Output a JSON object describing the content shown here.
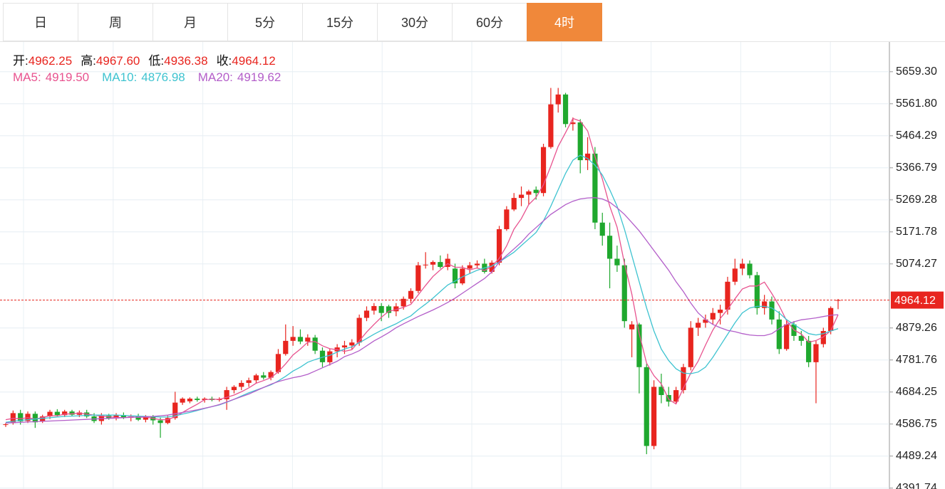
{
  "tabs": [
    "日",
    "周",
    "月",
    "5分",
    "15分",
    "30分",
    "60分",
    "4时"
  ],
  "active_tab": "4时",
  "chart_data": {
    "type": "candlestick",
    "info": [
      {
        "label": "开:",
        "value": "4962.25"
      },
      {
        "label": "高:",
        "value": "4967.60"
      },
      {
        "label": "低:",
        "value": "4936.38"
      },
      {
        "label": "收:",
        "value": "4964.12"
      }
    ],
    "up_color": "#e8251f",
    "down_color": "#1fa82e",
    "ylim": [
      4389,
      5752
    ],
    "yticks": [
      {
        "value": 5659.3,
        "label": "5659.30"
      },
      {
        "value": 5561.8,
        "label": "5561.80"
      },
      5464.29,
      5366.79,
      5269.28,
      5171.78,
      5074.27,
      4879.26,
      4781.76,
      4684.25,
      4586.75,
      4489.24,
      4391.74
    ],
    "grid": true,
    "current_price": {
      "value": 4964.12,
      "label": "4964.12"
    },
    "ohlc": [
      [
        4584,
        4590,
        4578,
        4586
      ],
      [
        4590,
        4628,
        4585,
        4620
      ],
      [
        4620,
        4630,
        4585,
        4595
      ],
      [
        4596,
        4625,
        4590,
        4618
      ],
      [
        4618,
        4625,
        4575,
        4592
      ],
      [
        4595,
        4615,
        4590,
        4610
      ],
      [
        4610,
        4630,
        4602,
        4624
      ],
      [
        4624,
        4632,
        4610,
        4614
      ],
      [
        4614,
        4630,
        4608,
        4625
      ],
      [
        4625,
        4630,
        4612,
        4615
      ],
      [
        4615,
        4628,
        4608,
        4622
      ],
      [
        4622,
        4630,
        4605,
        4610
      ],
      [
        4610,
        4620,
        4590,
        4596
      ],
      [
        4596,
        4620,
        4585,
        4612
      ],
      [
        4612,
        4618,
        4600,
        4604
      ],
      [
        4604,
        4620,
        4598,
        4614
      ],
      [
        4614,
        4622,
        4602,
        4606
      ],
      [
        4606,
        4616,
        4595,
        4610
      ],
      [
        4610,
        4618,
        4596,
        4600
      ],
      [
        4600,
        4614,
        4592,
        4608
      ],
      [
        4608,
        4614,
        4585,
        4598
      ],
      [
        4598,
        4606,
        4545,
        4590
      ],
      [
        4590,
        4612,
        4586,
        4605
      ],
      [
        4605,
        4685,
        4600,
        4652
      ],
      [
        4652,
        4668,
        4645,
        4664
      ],
      [
        4656,
        4668,
        4650,
        4664
      ],
      [
        4664,
        4670,
        4655,
        4660
      ],
      [
        4660,
        4668,
        4652,
        4664
      ],
      [
        4664,
        4670,
        4656,
        4660
      ],
      [
        4660,
        4668,
        4655,
        4662
      ],
      [
        4662,
        4700,
        4630,
        4690
      ],
      [
        4690,
        4705,
        4680,
        4700
      ],
      [
        4700,
        4720,
        4690,
        4712
      ],
      [
        4712,
        4728,
        4700,
        4720
      ],
      [
        4720,
        4740,
        4710,
        4735
      ],
      [
        4735,
        4745,
        4722,
        4728
      ],
      [
        4728,
        4750,
        4720,
        4745
      ],
      [
        4745,
        4815,
        4740,
        4800
      ],
      [
        4800,
        4890,
        4795,
        4840
      ],
      [
        4840,
        4885,
        4825,
        4852
      ],
      [
        4852,
        4875,
        4830,
        4838
      ],
      [
        4838,
        4860,
        4825,
        4850
      ],
      [
        4850,
        4858,
        4800,
        4810
      ],
      [
        4810,
        4820,
        4760,
        4775
      ],
      [
        4775,
        4815,
        4765,
        4808
      ],
      [
        4808,
        4830,
        4790,
        4820
      ],
      [
        4820,
        4840,
        4800,
        4826
      ],
      [
        4826,
        4845,
        4815,
        4835
      ],
      [
        4835,
        4920,
        4825,
        4910
      ],
      [
        4910,
        4945,
        4900,
        4932
      ],
      [
        4932,
        4955,
        4920,
        4946
      ],
      [
        4946,
        4955,
        4900,
        4925
      ],
      [
        4945,
        4950,
        4910,
        4925
      ],
      [
        4930,
        4955,
        4915,
        4945
      ],
      [
        4945,
        4975,
        4935,
        4968
      ],
      [
        4968,
        5000,
        4955,
        4992
      ],
      [
        4992,
        5080,
        4985,
        5070
      ],
      [
        5070,
        5110,
        5060,
        5072
      ],
      [
        5072,
        5085,
        5055,
        5080
      ],
      [
        5080,
        5100,
        5060,
        5065
      ],
      [
        5065,
        5105,
        5055,
        5090
      ],
      [
        5060,
        5075,
        5000,
        5015
      ],
      [
        5015,
        5070,
        5010,
        5060
      ],
      [
        5060,
        5080,
        5045,
        5070
      ],
      [
        5070,
        5085,
        5060,
        5075
      ],
      [
        5075,
        5090,
        5045,
        5050
      ],
      [
        5050,
        5085,
        5045,
        5078
      ],
      [
        5078,
        5190,
        5070,
        5180
      ],
      [
        5180,
        5250,
        5175,
        5240
      ],
      [
        5240,
        5290,
        5235,
        5275
      ],
      [
        5275,
        5310,
        5250,
        5285
      ],
      [
        5285,
        5300,
        5255,
        5295
      ],
      [
        5300,
        5310,
        5270,
        5290
      ],
      [
        5290,
        5440,
        5280,
        5430
      ],
      [
        5430,
        5610,
        5425,
        5560
      ],
      [
        5560,
        5610,
        5535,
        5590
      ],
      [
        5590,
        5595,
        5490,
        5500
      ],
      [
        5500,
        5520,
        5480,
        5505
      ],
      [
        5505,
        5515,
        5350,
        5390
      ],
      [
        5390,
        5460,
        5360,
        5410
      ],
      [
        5410,
        5430,
        5180,
        5200
      ],
      [
        5200,
        5230,
        5130,
        5160
      ],
      [
        5160,
        5200,
        5000,
        5090
      ],
      [
        5090,
        5130,
        5050,
        5070
      ],
      [
        5070,
        5090,
        4880,
        4900
      ],
      [
        4875,
        4900,
        4790,
        4890
      ],
      [
        4890,
        4895,
        4680,
        4760
      ],
      [
        4760,
        4770,
        4495,
        4520
      ],
      [
        4520,
        4720,
        4510,
        4700
      ],
      [
        4700,
        4740,
        4650,
        4675
      ],
      [
        4675,
        4700,
        4640,
        4655
      ],
      [
        4655,
        4700,
        4650,
        4690
      ],
      [
        4690,
        4770,
        4680,
        4760
      ],
      [
        4760,
        4900,
        4750,
        4880
      ],
      [
        4880,
        4910,
        4855,
        4895
      ],
      [
        4895,
        4920,
        4880,
        4905
      ],
      [
        4905,
        4940,
        4890,
        4925
      ],
      [
        4925,
        4950,
        4890,
        4935
      ],
      [
        4935,
        5035,
        4920,
        5020
      ],
      [
        5020,
        5090,
        5010,
        5060
      ],
      [
        5060,
        5090,
        5040,
        5075
      ],
      [
        5075,
        5085,
        5030,
        5040
      ],
      [
        5040,
        5050,
        4920,
        4940
      ],
      [
        4940,
        4980,
        4920,
        4960
      ],
      [
        4960,
        4975,
        4890,
        4905
      ],
      [
        4905,
        4930,
        4800,
        4815
      ],
      [
        4815,
        4905,
        4810,
        4890
      ],
      [
        4890,
        4900,
        4840,
        4855
      ],
      [
        4855,
        4870,
        4825,
        4840
      ],
      [
        4840,
        4855,
        4760,
        4775
      ],
      [
        4775,
        4840,
        4650,
        4830
      ],
      [
        4830,
        4880,
        4820,
        4870
      ],
      [
        4870,
        4945,
        4860,
        4940
      ],
      [
        4962.25,
        4967.6,
        4936.38,
        4964.12
      ]
    ],
    "series": [
      {
        "name": "MA5:",
        "label": "4919.50",
        "color": "#e8538f",
        "values": [
          4600,
          4604,
          4603,
          4606,
          4602,
          4607,
          4612,
          4612,
          4617,
          4618,
          4620,
          4617,
          4614,
          4611,
          4609,
          4607,
          4606,
          4609,
          4607,
          4608,
          4604,
          4600,
          4600,
          4609,
          4622,
          4635,
          4647,
          4661,
          4662,
          4662,
          4668,
          4675,
          4685,
          4697,
          4711,
          4719,
          4728,
          4746,
          4770,
          4797,
          4815,
          4836,
          4838,
          4825,
          4816,
          4813,
          4808,
          4813,
          4840,
          4867,
          4890,
          4912,
          4930,
          4935,
          4942,
          4951,
          4980,
          5009,
          5036,
          5056,
          5075,
          5064,
          5064,
          5056,
          5062,
          5054,
          5067,
          5091,
          5129,
          5180,
          5212,
          5255,
          5277,
          5315,
          5372,
          5432,
          5474,
          5517,
          5509,
          5479,
          5401,
          5333,
          5250,
          5186,
          5076,
          4982,
          4862,
          4772,
          4734,
          4709,
          4662,
          4648,
          4696,
          4742,
          4778,
          4827,
          4873,
          4908,
          4936,
          4968,
          4998,
          5007,
          5007,
          5019,
          4984,
          4947,
          4902,
          4873,
          4861,
          4836,
          4841,
          4852,
          4871,
          4919.5
        ]
      },
      {
        "name": "MA10:",
        "label": "4876.98",
        "color": "#3ec3d0",
        "values": [
          4592,
          4595,
          4598,
          4600,
          4602,
          4604,
          4606,
          4608,
          4610,
          4611,
          4612,
          4613,
          4614,
          4614,
          4614,
          4614,
          4613,
          4612,
          4611,
          4610,
          4609,
          4608,
          4608,
          4612,
          4617,
          4622,
          4628,
          4634,
          4640,
          4645,
          4653,
          4662,
          4672,
          4682,
          4690,
          4698,
          4706,
          4718,
          4732,
          4748,
          4760,
          4775,
          4783,
          4790,
          4796,
          4806,
          4815,
          4822,
          4834,
          4847,
          4860,
          4872,
          4882,
          4892,
          4905,
          4916,
          4935,
          4952,
          4970,
          4990,
          5010,
          5022,
          5035,
          5045,
          5055,
          5062,
          5068,
          5080,
          5095,
          5110,
          5130,
          5150,
          5170,
          5205,
          5250,
          5300,
          5350,
          5390,
          5405,
          5395,
          5375,
          5345,
          5300,
          5250,
          5180,
          5100,
          5020,
          4940,
          4870,
          4815,
          4780,
          4755,
          4742,
          4740,
          4745,
          4760,
          4790,
          4825,
          4860,
          4895,
          4925,
          4940,
          4945,
          4945,
          4940,
          4925,
          4905,
          4890,
          4875,
          4862,
          4858,
          4862,
          4870,
          4876.98
        ]
      },
      {
        "name": "MA20:",
        "label": "4919.62",
        "color": "#b35ec9",
        "values": [
          4590,
          4591,
          4592,
          4593,
          4594,
          4595,
          4596,
          4597,
          4598,
          4599,
          4600,
          4601,
          4602,
          4603,
          4604,
          4605,
          4606,
          4607,
          4608,
          4609,
          4610,
          4612,
          4614,
          4618,
          4622,
          4626,
          4630,
          4635,
          4640,
          4646,
          4654,
          4662,
          4670,
          4678,
          4688,
          4698,
          4708,
          4716,
          4722,
          4728,
          4732,
          4738,
          4748,
          4758,
          4768,
          4778,
          4792,
          4800,
          4810,
          4825,
          4840,
          4852,
          4865,
          4880,
          4892,
          4903,
          4914,
          4924,
          4934,
          4945,
          4957,
          4970,
          4985,
          5000,
          5015,
          5030,
          5050,
          5080,
          5100,
          5120,
          5140,
          5165,
          5185,
          5205,
          5225,
          5240,
          5255,
          5265,
          5272,
          5275,
          5276,
          5272,
          5262,
          5245,
          5225,
          5200,
          5175,
          5145,
          5115,
          5085,
          5055,
          5020,
          4990,
          4955,
          4925,
          4905,
          4890,
          4880,
          4872,
          4868,
          4862,
          4858,
          4856,
          4856,
          4862,
          4877,
          4890,
          4898,
          4904,
          4907,
          4910,
          4914,
          4918,
          4919.62
        ]
      }
    ]
  }
}
